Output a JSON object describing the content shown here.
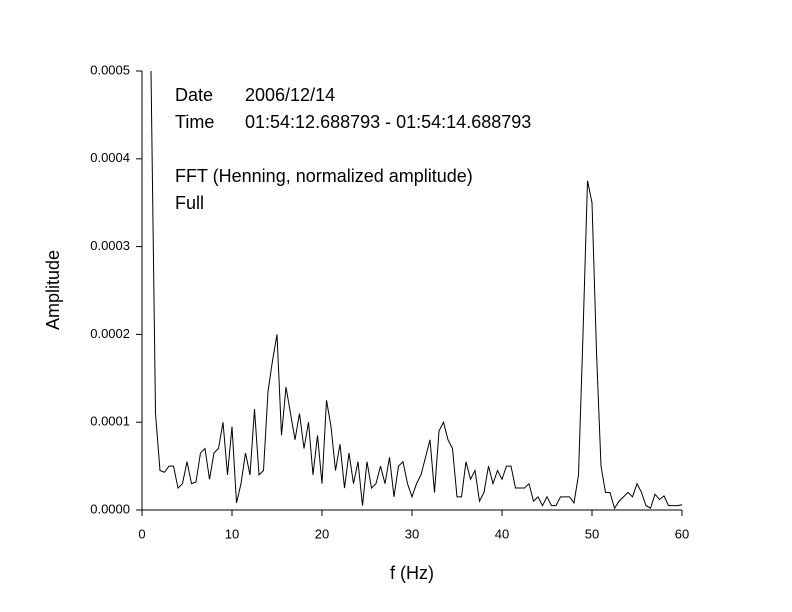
{
  "chart_data": {
    "type": "line",
    "xlabel": "f (Hz)",
    "ylabel": "Amplitude",
    "annotations": [
      {
        "label": "Date",
        "text": "2006/12/14"
      },
      {
        "label": "Time",
        "text": "01:54:12.688793 - 01:54:14.688793"
      },
      {
        "text": "FFT (Henning, normalized amplitude)"
      },
      {
        "text": "Full"
      }
    ],
    "xlim": [
      0,
      60
    ],
    "xticks": [
      0,
      10,
      20,
      30,
      40,
      50,
      60
    ],
    "ylim": [
      0,
      0.0005
    ],
    "yticks": [
      {
        "value": 0,
        "label": "0.0000"
      },
      {
        "value": 0.0001,
        "label": "0.0001"
      },
      {
        "value": 0.0002,
        "label": "0.0002"
      },
      {
        "value": 0.0003,
        "label": "0.0003"
      },
      {
        "value": 0.0004,
        "label": "0.0004"
      },
      {
        "value": 0.0005,
        "label": "0.0005"
      }
    ],
    "x": [
      1,
      1.5,
      2,
      2.5,
      3,
      3.5,
      4,
      4.5,
      5,
      5.5,
      6,
      6.5,
      7,
      7.5,
      8,
      8.5,
      9,
      9.5,
      10,
      10.5,
      11,
      11.5,
      12,
      12.5,
      13,
      13.5,
      14,
      14.5,
      15,
      15.5,
      16,
      16.5,
      17,
      17.5,
      18,
      18.5,
      19,
      19.5,
      20,
      20.5,
      21,
      21.5,
      22,
      22.5,
      23,
      23.5,
      24,
      24.5,
      25,
      25.5,
      26,
      26.5,
      27,
      27.5,
      28,
      28.5,
      29,
      29.5,
      30,
      30.5,
      31,
      31.5,
      32,
      32.5,
      33,
      33.5,
      34,
      34.5,
      35,
      35.5,
      36,
      36.5,
      37,
      37.5,
      38,
      38.5,
      39,
      39.5,
      40,
      40.5,
      41,
      41.5,
      42,
      42.5,
      43,
      43.5,
      44,
      44.5,
      45,
      45.5,
      46,
      46.5,
      47,
      47.5,
      48,
      48.5,
      49,
      49.5,
      50,
      50.5,
      51,
      51.5,
      52,
      52.5,
      53,
      53.5,
      54,
      54.5,
      55,
      55.5,
      56,
      56.5,
      57,
      57.5,
      58,
      58.5,
      59,
      59.5,
      60
    ],
    "series": [
      {
        "color": "#000000",
        "values": [
          0.0005,
          0.00011,
          4.5e-05,
          4.3e-05,
          5e-05,
          5e-05,
          2.5e-05,
          3e-05,
          5.5e-05,
          3e-05,
          3.2e-05,
          6.5e-05,
          7e-05,
          3.5e-05,
          6.5e-05,
          7e-05,
          0.0001,
          4e-05,
          9.5e-05,
          8e-06,
          3e-05,
          6.5e-05,
          4e-05,
          0.000115,
          4e-05,
          4.5e-05,
          0.000135,
          0.00017,
          0.0002,
          8.5e-05,
          0.00014,
          0.00011,
          8e-05,
          0.00011,
          7e-05,
          0.0001,
          4e-05,
          8.5e-05,
          3e-05,
          0.000125,
          9.5e-05,
          4.5e-05,
          7.5e-05,
          2.5e-05,
          6.5e-05,
          3e-05,
          5.5e-05,
          5e-06,
          5.5e-05,
          2.5e-05,
          3e-05,
          5e-05,
          3e-05,
          6e-05,
          1.5e-05,
          5e-05,
          5.5e-05,
          3e-05,
          1.5e-05,
          3e-05,
          4e-05,
          6e-05,
          8e-05,
          2e-05,
          9e-05,
          0.0001,
          8e-05,
          7e-05,
          1.5e-05,
          1.5e-05,
          5.5e-05,
          3.5e-05,
          4.5e-05,
          1e-05,
          2e-05,
          5e-05,
          3e-05,
          4.5e-05,
          3.5e-05,
          5e-05,
          5e-05,
          2.5e-05,
          2.5e-05,
          2.5e-05,
          3e-05,
          1e-05,
          1.5e-05,
          5e-06,
          1.5e-05,
          5e-06,
          5e-06,
          1.5e-05,
          1.5e-05,
          1.5e-05,
          8e-06,
          4e-05,
          0.0002,
          0.000375,
          0.00035,
          0.00018,
          5e-05,
          2e-05,
          2e-05,
          2e-06,
          1e-05,
          1.5e-05,
          2e-05,
          1.5e-05,
          3e-05,
          2e-05,
          5e-06,
          2e-06,
          1.8e-05,
          1.2e-05,
          1.6e-05,
          5e-06,
          5e-06,
          5e-06,
          6e-06
        ]
      }
    ]
  }
}
